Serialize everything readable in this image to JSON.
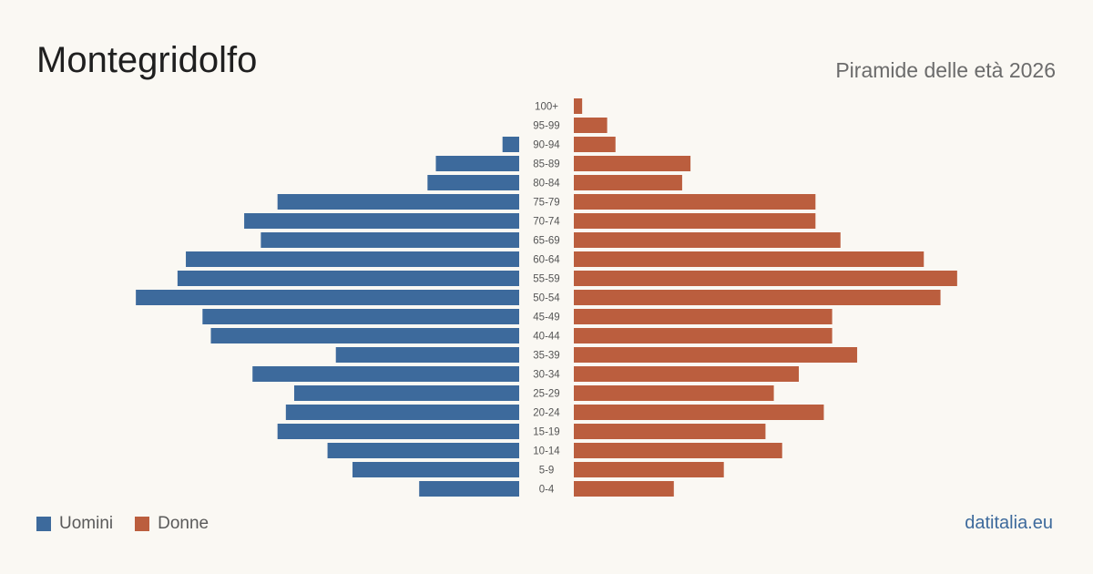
{
  "header": {
    "title": "Montegridolfo",
    "subtitle": "Piramide delle età 2026"
  },
  "legend": {
    "male_label": "Uomini",
    "female_label": "Donne"
  },
  "footer": {
    "source": "datitalia.eu"
  },
  "colors": {
    "male": "#3d6a9c",
    "female": "#bb5e3e",
    "background": "#faf8f3"
  },
  "chart_data": {
    "type": "bar",
    "orientation": "horizontal-pyramid",
    "categories": [
      "0-4",
      "5-9",
      "10-14",
      "15-19",
      "20-24",
      "25-29",
      "30-34",
      "35-39",
      "40-44",
      "45-49",
      "50-54",
      "55-59",
      "60-64",
      "65-69",
      "70-74",
      "75-79",
      "80-84",
      "85-89",
      "90-94",
      "95-99",
      "100+"
    ],
    "series": [
      {
        "name": "Uomini",
        "side": "left",
        "values": [
          12,
          20,
          23,
          29,
          28,
          27,
          32,
          22,
          37,
          38,
          46,
          41,
          40,
          31,
          33,
          29,
          11,
          10,
          2,
          0,
          0
        ]
      },
      {
        "name": "Donne",
        "side": "right",
        "values": [
          12,
          18,
          25,
          23,
          30,
          24,
          27,
          34,
          31,
          31,
          44,
          46,
          42,
          32,
          29,
          29,
          13,
          14,
          5,
          4,
          1
        ]
      }
    ],
    "xlim": [
      0,
      47
    ],
    "grid": false,
    "legend_position": "bottom-left"
  }
}
